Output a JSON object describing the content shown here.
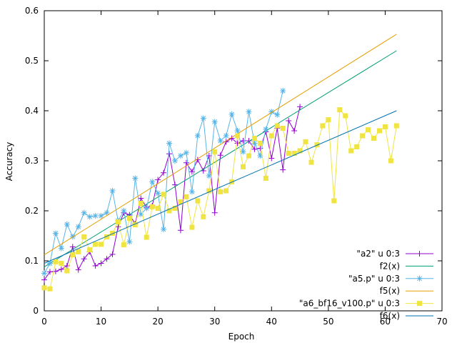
{
  "chart_data": {
    "type": "line",
    "title": "",
    "xlabel": "Epoch",
    "ylabel": "Accuracy",
    "xlim": [
      0,
      70
    ],
    "ylim": [
      0,
      0.6
    ],
    "xticks": [
      0,
      10,
      20,
      30,
      40,
      50,
      60,
      70
    ],
    "yticks": [
      0,
      0.1,
      0.2,
      0.3,
      0.4,
      0.5,
      0.6
    ],
    "ytick_labels": [
      "0",
      "0.1",
      "0.2",
      "0.3",
      "0.4",
      "0.5",
      "0.6"
    ],
    "grid": false,
    "legend_position": "bottom-right",
    "series": [
      {
        "name": "\"a2\" u 0:3",
        "kind": "points-line",
        "marker": "plus",
        "color": "#9400d3",
        "x": [
          0,
          1,
          2,
          3,
          4,
          5,
          6,
          7,
          8,
          9,
          10,
          11,
          12,
          13,
          14,
          15,
          16,
          17,
          18,
          19,
          20,
          21,
          22,
          23,
          24,
          25,
          26,
          27,
          28,
          29,
          30,
          31,
          32,
          33,
          34,
          35,
          36,
          37,
          38,
          39,
          40,
          41,
          42,
          43,
          44,
          45
        ],
        "y": [
          0.062,
          0.078,
          0.079,
          0.083,
          0.09,
          0.128,
          0.082,
          0.104,
          0.118,
          0.09,
          0.095,
          0.104,
          0.113,
          0.168,
          0.196,
          0.192,
          0.174,
          0.225,
          0.207,
          0.21,
          0.262,
          0.276,
          0.314,
          0.252,
          0.161,
          0.296,
          0.278,
          0.302,
          0.28,
          0.31,
          0.196,
          0.311,
          0.338,
          0.345,
          0.335,
          0.34,
          0.34,
          0.323,
          0.325,
          0.358,
          0.305,
          0.365,
          0.282,
          0.38,
          0.36,
          0.408
        ]
      },
      {
        "name": "f2(x)",
        "kind": "fit-line",
        "color": "#009e73",
        "x": [
          0,
          62
        ],
        "y": [
          0.088,
          0.52
        ]
      },
      {
        "name": "\"a5.p\" u 0:3",
        "kind": "points-line",
        "marker": "star",
        "color": "#56b4e9",
        "x": [
          0,
          1,
          2,
          3,
          4,
          5,
          6,
          7,
          8,
          9,
          10,
          11,
          12,
          13,
          14,
          15,
          16,
          17,
          18,
          19,
          20,
          21,
          22,
          23,
          24,
          25,
          26,
          27,
          28,
          29,
          30,
          31,
          32,
          33,
          34,
          35,
          36,
          37,
          38,
          39,
          40,
          41,
          42
        ],
        "y": [
          0.075,
          0.095,
          0.155,
          0.125,
          0.173,
          0.148,
          0.168,
          0.196,
          0.188,
          0.19,
          0.19,
          0.196,
          0.24,
          0.18,
          0.2,
          0.138,
          0.265,
          0.193,
          0.205,
          0.258,
          0.235,
          0.163,
          0.335,
          0.3,
          0.31,
          0.316,
          0.238,
          0.35,
          0.385,
          0.27,
          0.378,
          0.34,
          0.35,
          0.393,
          0.36,
          0.318,
          0.398,
          0.335,
          0.31,
          0.363,
          0.398,
          0.392,
          0.44
        ]
      },
      {
        "name": "f5(x)",
        "kind": "fit-line",
        "color": "#e69f00",
        "x": [
          0,
          62
        ],
        "y": [
          0.112,
          0.553
        ]
      },
      {
        "name": "\"a6_bf16_v100.p\" u 0:3",
        "kind": "points-line",
        "marker": "square",
        "color": "#f0e442",
        "x": [
          0,
          1,
          2,
          3,
          4,
          5,
          6,
          7,
          8,
          9,
          10,
          11,
          12,
          13,
          14,
          15,
          16,
          17,
          18,
          19,
          20,
          21,
          22,
          23,
          24,
          25,
          26,
          27,
          28,
          29,
          30,
          31,
          32,
          33,
          34,
          35,
          36,
          37,
          38,
          39,
          40,
          41,
          42,
          43,
          44,
          45,
          46,
          47,
          48,
          49,
          50,
          51,
          52,
          53,
          54,
          55,
          56,
          57,
          58,
          59,
          60,
          61,
          62
        ],
        "y": [
          0.046,
          0.044,
          0.098,
          0.095,
          0.08,
          0.112,
          0.118,
          0.148,
          0.122,
          0.133,
          0.133,
          0.148,
          0.155,
          0.178,
          0.132,
          0.185,
          0.172,
          0.215,
          0.147,
          0.208,
          0.205,
          0.233,
          0.2,
          0.205,
          0.218,
          0.228,
          0.167,
          0.22,
          0.188,
          0.24,
          0.318,
          0.238,
          0.24,
          0.258,
          0.35,
          0.288,
          0.31,
          0.345,
          0.335,
          0.265,
          0.35,
          0.37,
          0.365,
          0.315,
          0.315,
          0.32,
          0.338,
          0.297,
          0.332,
          0.37,
          0.382,
          0.22,
          0.402,
          0.39,
          0.32,
          0.328,
          0.35,
          0.362,
          0.345,
          0.36,
          0.368,
          0.3,
          0.37
        ]
      },
      {
        "name": "f6(x)",
        "kind": "fit-line",
        "color": "#0072b2",
        "x": [
          0,
          62
        ],
        "y": [
          0.095,
          0.4
        ]
      }
    ]
  }
}
